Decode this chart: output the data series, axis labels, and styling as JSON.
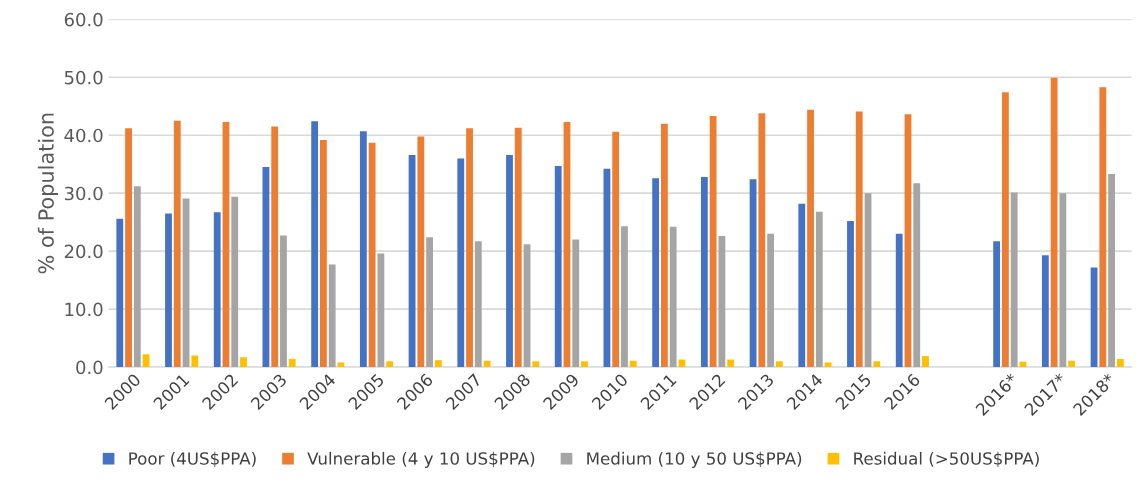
{
  "chart_data": {
    "type": "bar",
    "ylabel": "% of Population",
    "categories": [
      "2000",
      "2001",
      "2002",
      "2003",
      "2004",
      "2005",
      "2006",
      "2007",
      "2008",
      "2009",
      "2010",
      "2011",
      "2012",
      "2013",
      "2014",
      "2015",
      "2016",
      null,
      "2016*",
      "2017*",
      "2018*"
    ],
    "series": [
      {
        "name": "Poor (4US$PPA)",
        "color": "#4472c4",
        "values": [
          25.6,
          26.5,
          26.7,
          34.5,
          42.4,
          40.7,
          36.6,
          36.0,
          36.6,
          34.7,
          34.2,
          32.6,
          32.8,
          32.4,
          28.2,
          25.2,
          23.0,
          null,
          21.7,
          19.3,
          17.2
        ]
      },
      {
        "name": "Vulnerable (4 y 10 US$PPA)",
        "color": "#ed7d31",
        "values": [
          41.2,
          42.5,
          42.3,
          41.5,
          39.2,
          38.7,
          39.8,
          41.2,
          41.3,
          42.3,
          40.6,
          42.0,
          43.3,
          43.8,
          44.4,
          44.1,
          43.6,
          null,
          47.4,
          49.9,
          48.3
        ]
      },
      {
        "name": "Medium (10 y 50 US$PPA)",
        "color": "#a5a5a5",
        "values": [
          31.2,
          29.1,
          29.4,
          22.7,
          17.7,
          19.6,
          22.4,
          21.7,
          21.2,
          22.0,
          24.3,
          24.2,
          22.6,
          23.0,
          26.8,
          30.0,
          31.7,
          null,
          30.1,
          30.0,
          33.3
        ]
      },
      {
        "name": "Residual (>50US$PPA)",
        "color": "#ffc000",
        "values": [
          2.2,
          2.0,
          1.7,
          1.4,
          0.8,
          1.0,
          1.2,
          1.1,
          1.0,
          1.0,
          1.1,
          1.3,
          1.3,
          1.0,
          0.8,
          1.0,
          1.9,
          null,
          0.9,
          1.1,
          1.4
        ]
      }
    ],
    "ylim": [
      0,
      60
    ],
    "yticks": [
      {
        "value": 0,
        "label": "0.0"
      },
      {
        "value": 10,
        "label": "10.0"
      },
      {
        "value": 20,
        "label": "20.0"
      },
      {
        "value": 30,
        "label": "30.0"
      },
      {
        "value": 40,
        "label": "40.0"
      },
      {
        "value": 50,
        "label": "50.0"
      },
      {
        "value": 60,
        "label": "60.0"
      }
    ],
    "grid": "y",
    "legend": "bottom"
  }
}
